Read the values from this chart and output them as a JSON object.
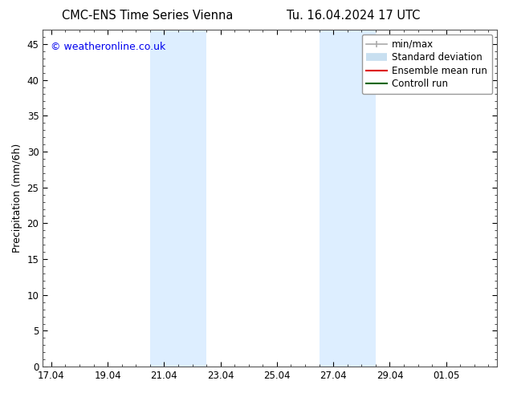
{
  "title_left": "CMC-ENS Time Series Vienna",
  "title_right": "Tu. 16.04.2024 17 UTC",
  "ylabel": "Precipitation (mm/6h)",
  "watermark": "© weatheronline.co.uk",
  "watermark_color": "#0000ee",
  "ylim": [
    0,
    47
  ],
  "yticks": [
    0,
    5,
    10,
    15,
    20,
    25,
    30,
    35,
    40,
    45
  ],
  "xtick_labels": [
    "17.04",
    "19.04",
    "21.04",
    "23.04",
    "25.04",
    "27.04",
    "29.04",
    "01.05"
  ],
  "xtick_positions": [
    0,
    2,
    4,
    6,
    8,
    10,
    12,
    14
  ],
  "x_minor_ticks": [
    0.5,
    1.0,
    1.5,
    2.5,
    3.0,
    3.5,
    4.5,
    5.0,
    5.5,
    6.5,
    7.0,
    7.5,
    8.5,
    9.0,
    9.5,
    10.5,
    11.0,
    11.5,
    12.5,
    13.0,
    13.5,
    14.5,
    15.0,
    15.5
  ],
  "xlim": [
    -0.3,
    15.8
  ],
  "shaded_regions": [
    {
      "x_start": 3.5,
      "x_end": 5.5
    },
    {
      "x_start": 9.5,
      "x_end": 11.5
    }
  ],
  "shaded_color": "#ddeeff",
  "background_color": "#ffffff",
  "legend_items": [
    {
      "label": "min/max",
      "color": "#aaaaaa",
      "lw": 1.2
    },
    {
      "label": "Standard deviation",
      "color": "#c8dff0",
      "lw": 7
    },
    {
      "label": "Ensemble mean run",
      "color": "#dd0000",
      "lw": 1.5
    },
    {
      "label": "Controll run",
      "color": "#006600",
      "lw": 1.5
    }
  ],
  "title_fontsize": 10.5,
  "axis_fontsize": 9,
  "tick_fontsize": 8.5,
  "watermark_fontsize": 9,
  "ylabel_fontsize": 9
}
